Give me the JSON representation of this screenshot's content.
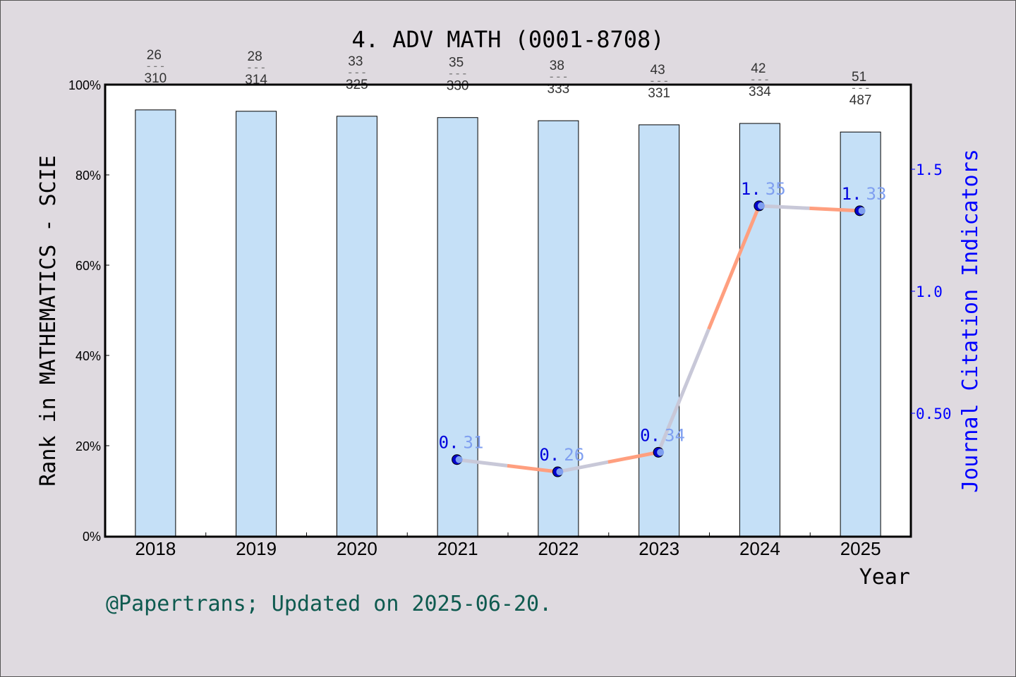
{
  "chart_data": {
    "type": "bar+line",
    "title": "4. ADV MATH (0001-8708)",
    "xlabel": "Year",
    "ylabel": "Rank in MATHEMATICS - SCIE",
    "y2label": "Journal Citation Indicators",
    "categories": [
      "2018",
      "2019",
      "2020",
      "2021",
      "2022",
      "2023",
      "2024",
      "2025"
    ],
    "ylim": [
      0,
      100
    ],
    "yticks": [
      "0%",
      "20%",
      "40%",
      "60%",
      "80%",
      "100%"
    ],
    "y2lim": [
      0,
      1.85
    ],
    "y2ticks": [
      {
        "v": 0.5,
        "label": "0.50"
      },
      {
        "v": 1.0,
        "label": "1.0"
      },
      {
        "v": 1.5,
        "label": "1.5"
      }
    ],
    "bars": {
      "values": [
        94.4,
        94.1,
        93.0,
        92.7,
        92.0,
        91.1,
        91.4,
        89.5
      ],
      "rank": [
        "26",
        "28",
        "33",
        "35",
        "38",
        "43",
        "42",
        "51"
      ],
      "total": [
        "310",
        "314",
        "325",
        "330",
        "333",
        "331",
        "334",
        "487"
      ],
      "color": "#c5e0f7"
    },
    "jci": {
      "values": [
        null,
        null,
        null,
        0.31,
        0.26,
        0.34,
        1.35,
        1.33
      ],
      "labels": [
        null,
        null,
        null,
        "0.31",
        "0.26",
        "0.34",
        "1.35",
        "1.33"
      ],
      "line_color": "#ff9f7f",
      "alt_color": "#c8c8d8",
      "point_color": "#0000cc"
    },
    "footer": "@Papertrans; Updated on 2025-06-20."
  }
}
